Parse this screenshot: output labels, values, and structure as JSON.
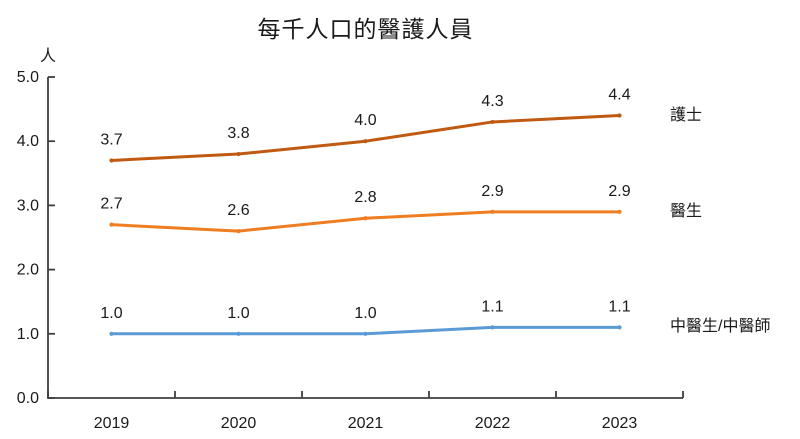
{
  "chart_data": {
    "type": "line",
    "title": "每千人口的醫護人員",
    "unit_label": "人",
    "categories": [
      "2019",
      "2020",
      "2021",
      "2022",
      "2023"
    ],
    "series": [
      {
        "name": "護士",
        "values": [
          3.7,
          3.8,
          4.0,
          4.3,
          4.4
        ],
        "color": "#C05A11"
      },
      {
        "name": "醫生",
        "values": [
          2.7,
          2.6,
          2.8,
          2.9,
          2.9
        ],
        "color": "#EF7D21"
      },
      {
        "name": "中醫生/中醫師",
        "values": [
          1.0,
          1.0,
          1.0,
          1.1,
          1.1
        ],
        "color": "#5B9BD5"
      }
    ],
    "ylim": [
      0,
      5
    ],
    "ytick_step": 1,
    "ytick_labels": [
      "0.0",
      "1.0",
      "2.0",
      "3.0",
      "4.0",
      "5.0"
    ],
    "grid": false,
    "legend_position": "right-of-line-ends",
    "data_labels": "above-points",
    "axis_color": "#3f3f3f",
    "text_color": "#1a1a1a"
  }
}
